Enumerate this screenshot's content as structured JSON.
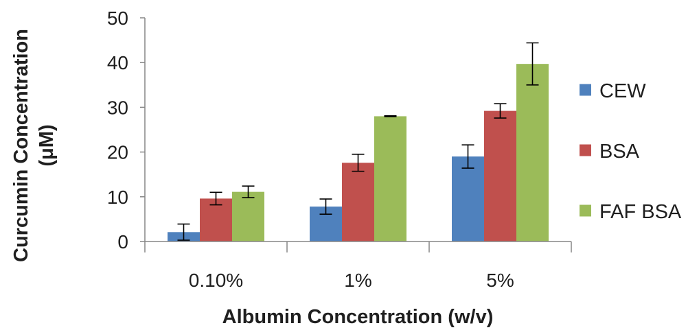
{
  "chart_data": {
    "type": "bar",
    "title": "",
    "xlabel": "Albumin Concentration (w/v)",
    "ylabel": "Curcumin Concentration (μM)",
    "ylabel_lines": [
      "Curcumin Concentration",
      "(μM)"
    ],
    "ylim": [
      0,
      50
    ],
    "yticks": [
      "0",
      "10",
      "20",
      "30",
      "40",
      "50"
    ],
    "categories": [
      "0.10%",
      "1%",
      "5%"
    ],
    "series": [
      {
        "name": "CEW",
        "color": "#4f81bd",
        "values": [
          2.1,
          7.8,
          19.0
        ],
        "errors": [
          1.8,
          1.7,
          2.6
        ]
      },
      {
        "name": "BSA",
        "color": "#c0504d",
        "values": [
          9.6,
          17.6,
          29.2
        ],
        "errors": [
          1.4,
          1.9,
          1.6
        ]
      },
      {
        "name": "FAF BSA",
        "color": "#9bbb59",
        "values": [
          11.1,
          28.0,
          39.7
        ],
        "errors": [
          1.3,
          0.1,
          4.7
        ]
      }
    ],
    "grid": false,
    "legend": "right",
    "error_bars": true
  }
}
